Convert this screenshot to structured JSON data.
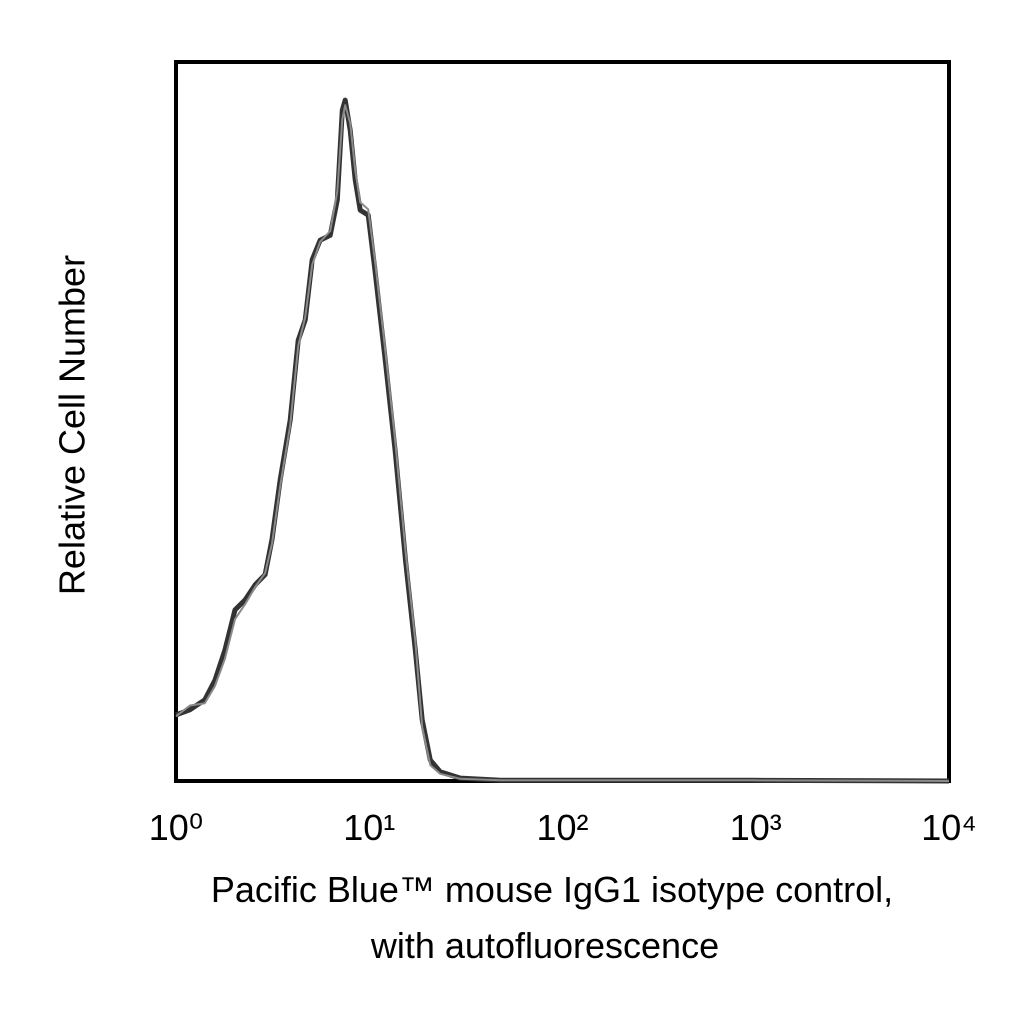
{
  "chart_data": {
    "type": "line",
    "xlabel": [
      "Pacific Blue™ mouse IgG1 isotype control,",
      "with autofluorescence"
    ],
    "ylabel": "Relative Cell Number",
    "xscale": "log",
    "xlim": [
      1,
      10000
    ],
    "ylim": [
      0,
      100
    ],
    "xticks": [
      {
        "value": 1,
        "label": "10⁰"
      },
      {
        "value": 10,
        "label": "10¹"
      },
      {
        "value": 100,
        "label": "10²"
      },
      {
        "value": 1000,
        "label": "10³"
      },
      {
        "value": 10000,
        "label": "10⁴"
      }
    ],
    "grid": false,
    "series": [
      {
        "color": "#333333",
        "x": [
          1.0,
          1.18,
          1.41,
          1.59,
          1.79,
          2.02,
          2.28,
          2.57,
          2.89,
          3.14,
          3.46,
          3.9,
          4.29,
          4.66,
          5.07,
          5.57,
          6.28,
          6.83,
          7.25,
          7.51,
          7.97,
          8.46,
          8.98,
          9.88,
          10.7,
          12.1,
          13.6,
          15.4,
          17.3,
          18.8,
          20.7,
          23.3,
          29.6,
          47.7,
          157,
          942,
          10000
        ],
        "values": [
          9.2,
          9.9,
          11.3,
          14.0,
          18.2,
          23.8,
          25.2,
          27.3,
          28.7,
          33.6,
          41.9,
          50.2,
          61.3,
          64.1,
          72.5,
          75.2,
          75.9,
          80.8,
          93.3,
          94.7,
          90.5,
          83.6,
          79.4,
          78.7,
          71.1,
          58.6,
          46.0,
          30.7,
          18.2,
          8.5,
          2.9,
          1.3,
          0.4,
          0.1,
          0.1,
          0.1,
          0
        ]
      },
      {
        "color": "#8a8a8a",
        "x": [
          1.0,
          1.18,
          1.41,
          1.59,
          1.79,
          2.02,
          2.28,
          2.57,
          2.89,
          3.14,
          3.46,
          3.9,
          4.29,
          4.66,
          5.07,
          5.57,
          6.28,
          6.83,
          7.25,
          7.51,
          7.97,
          8.46,
          8.98,
          9.88,
          10.7,
          12.1,
          13.6,
          15.4,
          17.3,
          18.8,
          20.7,
          23.3,
          29.6,
          47.7,
          157,
          942,
          10000
        ],
        "values": [
          9.0,
          10.5,
          10.8,
          13.2,
          17.0,
          22.5,
          24.6,
          27.0,
          28.9,
          33.0,
          41.0,
          49.5,
          60.5,
          64.5,
          71.8,
          75.0,
          76.5,
          82.0,
          92.0,
          94.0,
          91.5,
          85.0,
          80.5,
          79.5,
          72.5,
          60.0,
          47.5,
          32.0,
          19.5,
          7.5,
          2.2,
          1.0,
          0.3,
          0.1,
          0.1,
          0.1,
          0
        ]
      }
    ]
  }
}
